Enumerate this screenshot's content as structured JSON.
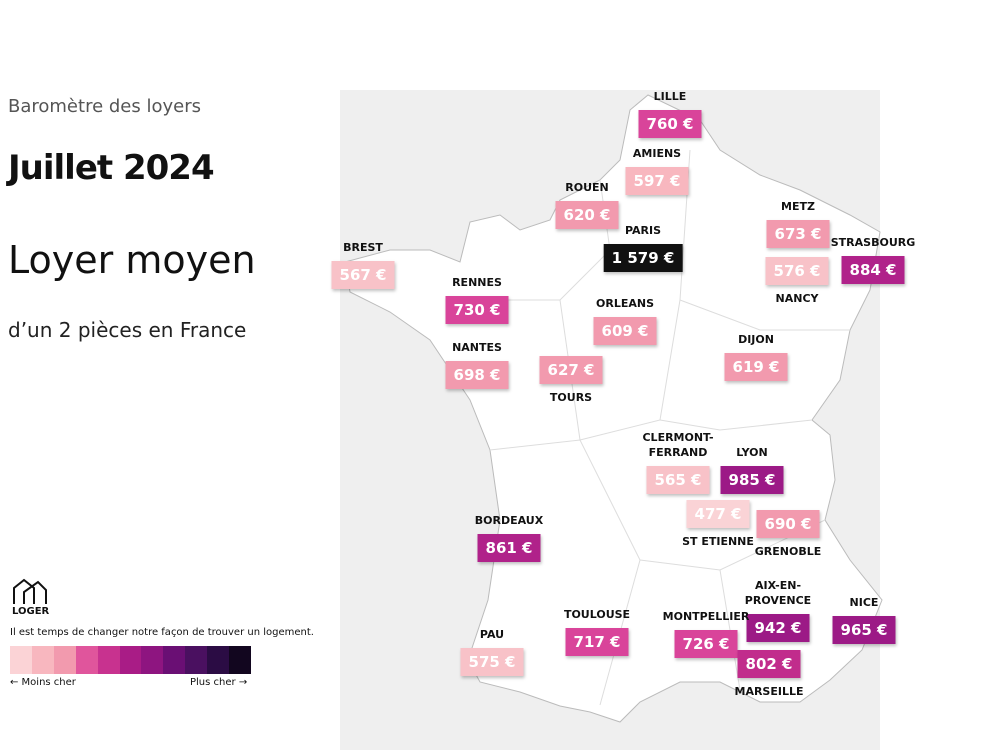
{
  "header": {
    "kicker": "Baromètre des loyers",
    "title": "Juillet 2024",
    "subtitle": "Loyer moyen",
    "description": "d’un 2 pièces en France"
  },
  "cities": [
    {
      "name": "LILLE",
      "price": "760 €"
    },
    {
      "name": "AMIENS",
      "price": "597 €"
    },
    {
      "name": "ROUEN",
      "price": "620 €"
    },
    {
      "name": "PARIS",
      "price": "1 579 €"
    },
    {
      "name": "METZ",
      "price": "673 €"
    },
    {
      "name": "STRASBOURG",
      "price": "884 €"
    },
    {
      "name": "NANCY",
      "price": "576 €"
    },
    {
      "name": "BREST",
      "price": "567 €"
    },
    {
      "name": "RENNES",
      "price": "730 €"
    },
    {
      "name": "ORLEANS",
      "price": "609 €"
    },
    {
      "name": "NANTES",
      "price": "698 €"
    },
    {
      "name": "TOURS",
      "price": "627 €"
    },
    {
      "name": "DIJON",
      "price": "619 €"
    },
    {
      "name": "CLERMONT-FERRAND",
      "price": "565 €"
    },
    {
      "name": "LYON",
      "price": "985 €"
    },
    {
      "name": "ST ETIENNE",
      "price": "477 €"
    },
    {
      "name": "GRENOBLE",
      "price": "690 €"
    },
    {
      "name": "BORDEAUX",
      "price": "861 €"
    },
    {
      "name": "AIX-EN-PROVENCE",
      "price": "942 €"
    },
    {
      "name": "NICE",
      "price": "965 €"
    },
    {
      "name": "TOULOUSE",
      "price": "717 €"
    },
    {
      "name": "MONTPELLIER",
      "price": "726 €"
    },
    {
      "name": "PAU",
      "price": "575 €"
    },
    {
      "name": "MARSEILLE",
      "price": "802 €"
    }
  ],
  "brand": {
    "name": "LOGER",
    "tagline": "Il est temps de changer notre façon de trouver un logement."
  },
  "legend": {
    "low": "← Moins cher",
    "high": "Plus cher →"
  }
}
